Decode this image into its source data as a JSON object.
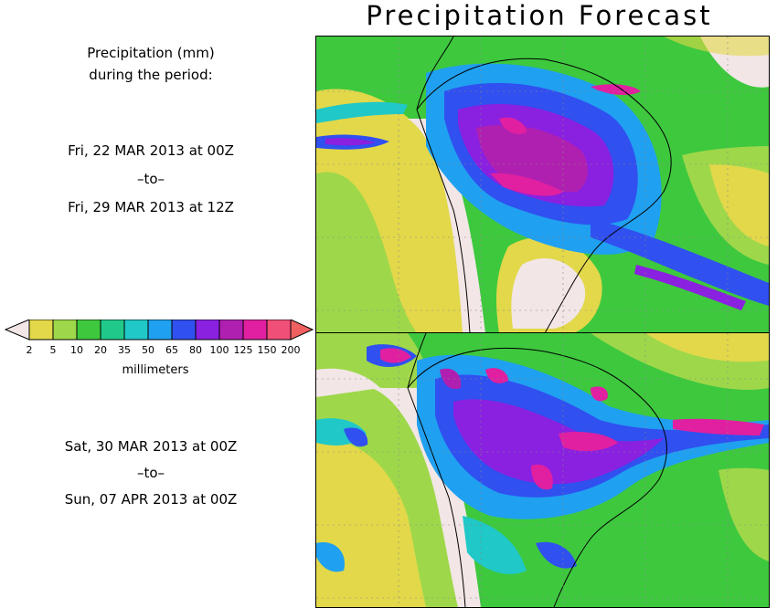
{
  "title": "Precipitation Forecast",
  "info": {
    "heading": [
      "Precipitation (mm)",
      "during the period:"
    ]
  },
  "periods": [
    {
      "start": "Fri, 22 MAR 2013 at 00Z",
      "sep": "–to–",
      "end": "Fri, 29 MAR 2013 at 12Z"
    },
    {
      "start": "Sat, 30 MAR 2013 at 00Z",
      "sep": "–to–",
      "end": "Sun, 07 APR 2013 at 00Z"
    }
  ],
  "legend": {
    "ticks": [
      "2",
      "5",
      "10",
      "20",
      "35",
      "50",
      "65",
      "80",
      "100",
      "125",
      "150",
      "200"
    ],
    "units": "millimeters",
    "colors": [
      "#f2e6e6",
      "#e2d84a",
      "#9ed84a",
      "#3ec83e",
      "#20c98a",
      "#20c8c8",
      "#20a0f0",
      "#3050f0",
      "#8a20e0",
      "#b020b0",
      "#e020a0",
      "#f05078",
      "#f06060"
    ]
  }
}
